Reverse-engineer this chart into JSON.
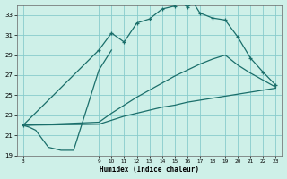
{
  "xlabel": "Humidex (Indice chaleur)",
  "bg_color": "#cef0e8",
  "grid_color": "#88cccc",
  "line_color": "#1a6e6a",
  "xlim": [
    2.5,
    23.5
  ],
  "ylim": [
    19,
    34
  ],
  "yticks": [
    19,
    21,
    23,
    25,
    27,
    29,
    31,
    33
  ],
  "xticks": [
    3,
    9,
    10,
    11,
    12,
    13,
    14,
    15,
    16,
    17,
    18,
    19,
    20,
    21,
    22,
    23
  ],
  "humidex_x": [
    3,
    9,
    10,
    11,
    12,
    13,
    14,
    15,
    15.5,
    16,
    16.5,
    17,
    18,
    19,
    20,
    21,
    22,
    23
  ],
  "humidex_y": [
    22.0,
    29.5,
    31.2,
    30.3,
    32.2,
    32.6,
    33.6,
    33.9,
    34.3,
    33.8,
    34.2,
    33.2,
    32.7,
    32.5,
    30.8,
    28.7,
    27.3,
    26.0
  ],
  "upper_x": [
    3,
    9,
    10,
    11,
    12,
    13,
    14,
    15,
    16,
    17,
    18,
    19,
    20,
    21,
    22,
    23
  ],
  "upper_y": [
    22.0,
    22.3,
    23.2,
    24.0,
    24.8,
    25.5,
    26.2,
    26.9,
    27.5,
    28.1,
    28.6,
    29.0,
    28.0,
    27.2,
    26.5,
    25.8
  ],
  "lower_x": [
    3,
    9,
    10,
    11,
    12,
    13,
    14,
    15,
    16,
    17,
    18,
    19,
    20,
    21,
    22,
    23
  ],
  "lower_y": [
    22.0,
    22.1,
    22.5,
    22.9,
    23.2,
    23.5,
    23.8,
    24.0,
    24.3,
    24.5,
    24.7,
    24.9,
    25.1,
    25.3,
    25.5,
    25.7
  ],
  "dip_x": [
    3,
    3.5,
    4,
    5,
    6,
    6.5,
    7,
    9,
    10
  ],
  "dip_y": [
    22.0,
    21.8,
    21.5,
    19.8,
    19.5,
    19.5,
    19.5,
    27.5,
    29.5
  ]
}
